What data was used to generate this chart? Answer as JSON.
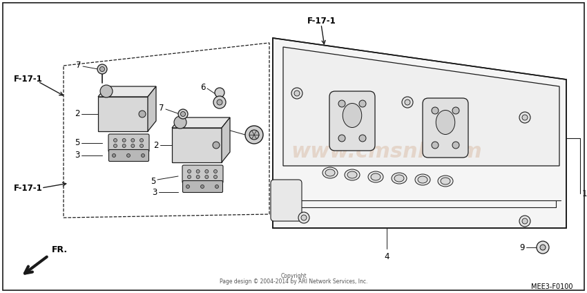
{
  "background_color": "#ffffff",
  "line_color": "#1a1a1a",
  "watermark_text": "www.cmsnl.com",
  "watermark_color": "#c8956a",
  "watermark_alpha": 0.28,
  "copyright_line1": "Copyright",
  "copyright_line2": "Page design © 2004-2014 by ARI Network Services, Inc.",
  "part_number": "MEE3-F0100",
  "fig_width": 8.5,
  "fig_height": 4.24,
  "dpi": 100
}
